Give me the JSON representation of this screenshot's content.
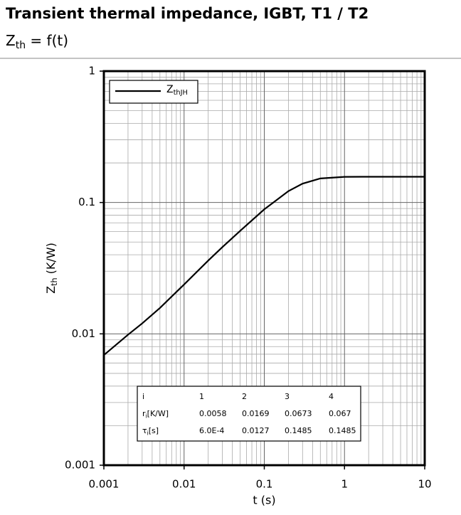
{
  "title": "Transient thermal impedance, IGBT, T1 / T2",
  "subtitle": {
    "main": "Z",
    "sub": "th",
    "rest": " = f(t)"
  },
  "chart_data": {
    "type": "line",
    "x_label": "t (s)",
    "y_label": {
      "main": "Z",
      "sub": "th",
      "rest": " (K/W)"
    },
    "x": [
      0.001,
      0.002,
      0.003,
      0.005,
      0.01,
      0.02,
      0.03,
      0.05,
      0.1,
      0.2,
      0.3,
      0.5,
      1,
      2,
      5,
      10
    ],
    "series": [
      {
        "name": {
          "main": "Z",
          "sub": "thJH"
        },
        "color": "#000000",
        "values": [
          0.00689,
          0.00985,
          0.012,
          0.01575,
          0.02376,
          0.03612,
          0.0457,
          0.0608,
          0.0887,
          0.1221,
          0.1392,
          0.1524,
          0.1568,
          0.157,
          0.157,
          0.157
        ]
      }
    ],
    "xlim": [
      0.001,
      10
    ],
    "ylim": [
      0.001,
      1
    ],
    "xticks": [
      0.001,
      0.01,
      0.1,
      1,
      10
    ],
    "yticks": [
      0.001,
      0.01,
      0.1,
      1
    ],
    "x_scale": "log",
    "y_scale": "log",
    "grid": true,
    "legend": "upper left",
    "table": {
      "rows": [
        [
          "i",
          "1",
          "2",
          "3",
          "4"
        ],
        [
          {
            "main": "r",
            "sub": "i",
            "rest": "[K/W]"
          },
          "0.0058",
          "0.0169",
          "0.0673",
          "0.067"
        ],
        [
          {
            "main": "τ",
            "sub": "i",
            "rest": "[s]"
          },
          "6.0E-4",
          "0.0127",
          "0.1485",
          "0.1485"
        ]
      ]
    }
  }
}
